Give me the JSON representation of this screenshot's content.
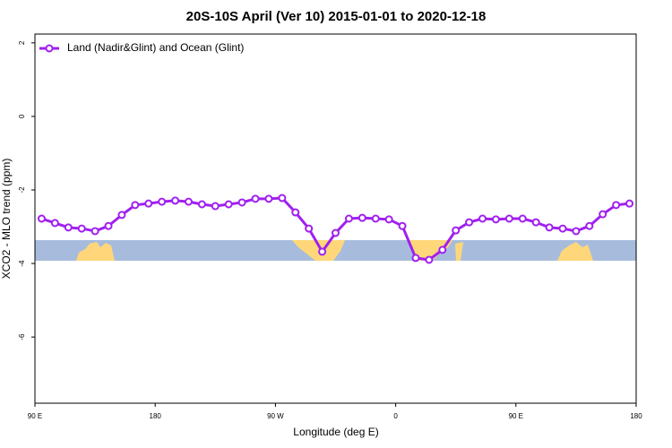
{
  "chart_data": {
    "type": "line",
    "title": "20S-10S April (Ver 10)   2015-01-01 to 2020-12-18",
    "xlabel": "Longitude (deg E)",
    "ylabel": "XCO2 - MLO trend (ppm)",
    "xlim": [
      90,
      540
    ],
    "xticks": [
      {
        "value": 90,
        "label": "90 E"
      },
      180,
      {
        "value": 270,
        "label": "90 W"
      },
      {
        "value": 360,
        "label": "0"
      },
      {
        "value": 450,
        "label": "90 E"
      },
      {
        "value": 540,
        "label": "180"
      }
    ],
    "ylim": [
      -7.8,
      2.24
    ],
    "yticks": [
      -6,
      -4,
      -2,
      0,
      2
    ],
    "legend": "top-left",
    "series": [
      {
        "name": "Land (Nadir&Glint) and Ocean (Glint)",
        "color": "#a020f0",
        "x": [
          95,
          105,
          115,
          125,
          135,
          145,
          155,
          165,
          175,
          185,
          195,
          205,
          215,
          225,
          235,
          245,
          255,
          265,
          275,
          285,
          295,
          305,
          315,
          325,
          335,
          345,
          355,
          365,
          375,
          385,
          395,
          405,
          415,
          425,
          435,
          445,
          455,
          465,
          475,
          485,
          495,
          505,
          515,
          525,
          535
        ],
        "values": [
          -2.78,
          -2.9,
          -3.02,
          -3.05,
          -3.12,
          -2.98,
          -2.68,
          -2.41,
          -2.37,
          -2.32,
          -2.29,
          -2.32,
          -2.39,
          -2.44,
          -2.39,
          -2.34,
          -2.24,
          -2.24,
          -2.22,
          -2.61,
          -3.05,
          -3.68,
          -3.17,
          -2.78,
          -2.76,
          -2.78,
          -2.8,
          -2.98,
          -3.85,
          -3.9,
          -3.63,
          -3.1,
          -2.88,
          -2.78,
          -2.8,
          -2.78,
          -2.78,
          -2.88,
          -3.02,
          -3.05,
          -3.12,
          -2.98,
          -2.66,
          -2.41,
          -2.37
        ]
      }
    ]
  }
}
